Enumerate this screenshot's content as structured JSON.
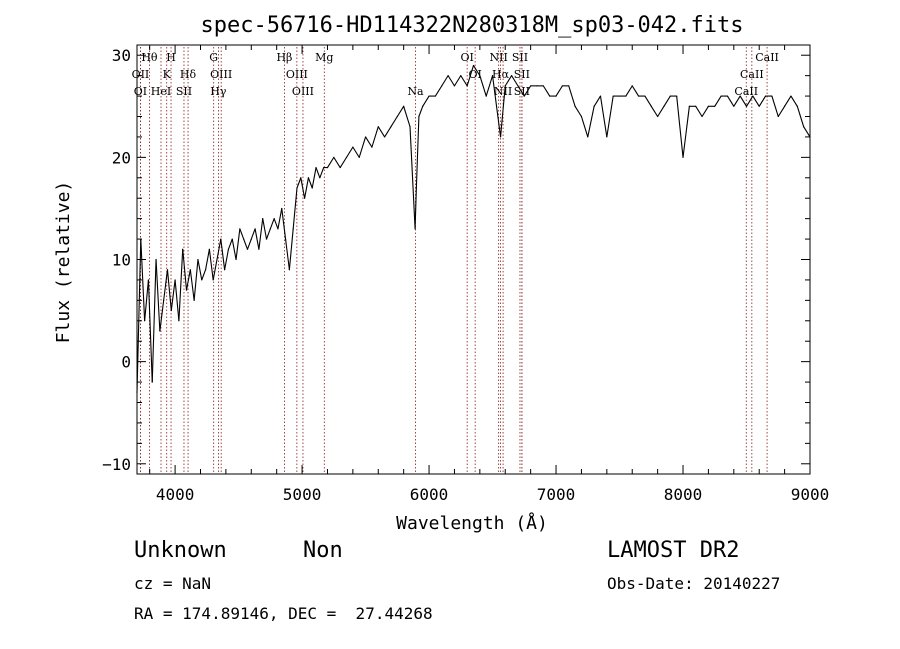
{
  "chart_data": {
    "type": "line",
    "title": "spec-56716-HD114322N280318M_sp03-042.fits",
    "xlabel": "Wavelength (Å)",
    "ylabel": "Flux (relative)",
    "xlim": [
      3700,
      9000
    ],
    "ylim": [
      -11,
      31
    ],
    "x_ticks": [
      4000,
      5000,
      6000,
      7000,
      8000,
      9000
    ],
    "y_ticks": [
      -10,
      0,
      10,
      20,
      30
    ],
    "x_tick_labels": [
      "4000",
      "5000",
      "6000",
      "7000",
      "8000",
      "9000"
    ],
    "y_tick_labels": [
      "−10",
      "0",
      "10",
      "20",
      "30"
    ],
    "grid": false,
    "series": [
      {
        "x": [
          3700,
          3730,
          3760,
          3790,
          3820,
          3850,
          3880,
          3910,
          3940,
          3970,
          4000,
          4030,
          4060,
          4090,
          4120,
          4150,
          4180,
          4210,
          4240,
          4270,
          4300,
          4330,
          4360,
          4390,
          4420,
          4450,
          4480,
          4510,
          4540,
          4570,
          4600,
          4630,
          4660,
          4690,
          4720,
          4750,
          4780,
          4810,
          4840,
          4870,
          4900,
          4930,
          4960,
          4990,
          5020,
          5050,
          5080,
          5110,
          5140,
          5170,
          5200,
          5250,
          5300,
          5350,
          5400,
          5450,
          5500,
          5550,
          5600,
          5650,
          5700,
          5750,
          5800,
          5850,
          5890,
          5900,
          5920,
          5950,
          6000,
          6050,
          6100,
          6150,
          6200,
          6250,
          6300,
          6350,
          6400,
          6450,
          6500,
          6563,
          6600,
          6650,
          6700,
          6750,
          6800,
          6850,
          6900,
          6950,
          7000,
          7050,
          7100,
          7150,
          7200,
          7250,
          7300,
          7350,
          7400,
          7450,
          7500,
          7550,
          7600,
          7650,
          7700,
          7750,
          7800,
          7850,
          7900,
          7950,
          8000,
          8050,
          8100,
          8150,
          8200,
          8250,
          8300,
          8350,
          8400,
          8450,
          8500,
          8550,
          8600,
          8650,
          8700,
          8750,
          8800,
          8850,
          8900,
          8950,
          9000
        ],
        "y": [
          -3,
          12,
          4,
          8,
          -2,
          10,
          3,
          6,
          9,
          5,
          8,
          4,
          11,
          7,
          9,
          6,
          10,
          8,
          9,
          11,
          8,
          10,
          12,
          9,
          11,
          12,
          10,
          13,
          12,
          11,
          12,
          13,
          11,
          14,
          12,
          13,
          14,
          13,
          15,
          12,
          9,
          13,
          17,
          18,
          16,
          18,
          17,
          19,
          18,
          19,
          19,
          20,
          19,
          20,
          21,
          20,
          22,
          21,
          23,
          22,
          23,
          24,
          25,
          23,
          13,
          17,
          24,
          25,
          26,
          26,
          27,
          28,
          27,
          28,
          27,
          29,
          28,
          26,
          28,
          22,
          27,
          28,
          27,
          26,
          27,
          27,
          27,
          26,
          26,
          27,
          27,
          25,
          24,
          22,
          25,
          26,
          22,
          26,
          26,
          26,
          27,
          26,
          26,
          25,
          24,
          25,
          26,
          26,
          20,
          25,
          25,
          24,
          25,
          25,
          26,
          26,
          25,
          26,
          25,
          26,
          25,
          26,
          26,
          24,
          25,
          26,
          25,
          23,
          22
        ],
        "color": "#000000"
      }
    ],
    "line_markers": [
      {
        "name": "Hθ",
        "wavelength": 3798,
        "row": 0
      },
      {
        "name": "OII",
        "wavelength": 3727,
        "row": 1
      },
      {
        "name": "OI",
        "wavelength": 3727,
        "row": 2
      },
      {
        "name": "H",
        "wavelength": 3968,
        "row": 0
      },
      {
        "name": "K",
        "wavelength": 3934,
        "row": 1
      },
      {
        "name": "HeI",
        "wavelength": 3889,
        "row": 2
      },
      {
        "name": "SII",
        "wavelength": 4070,
        "row": 2
      },
      {
        "name": "Hδ",
        "wavelength": 4102,
        "row": 1
      },
      {
        "name": "G",
        "wavelength": 4304,
        "row": 0
      },
      {
        "name": "OIII",
        "wavelength": 4363,
        "row": 1
      },
      {
        "name": "Hγ",
        "wavelength": 4341,
        "row": 2
      },
      {
        "name": "Hβ",
        "wavelength": 4861,
        "row": 0
      },
      {
        "name": "OIII",
        "wavelength": 4959,
        "row": 1
      },
      {
        "name": "OIII",
        "wavelength": 5007,
        "row": 2
      },
      {
        "name": "Mg",
        "wavelength": 5175,
        "row": 0
      },
      {
        "name": "Na",
        "wavelength": 5893,
        "row": 2
      },
      {
        "name": "OI",
        "wavelength": 6300,
        "row": 0
      },
      {
        "name": "OI",
        "wavelength": 6363,
        "row": 1
      },
      {
        "name": "NII",
        "wavelength": 6548,
        "row": 0
      },
      {
        "name": "Hα",
        "wavelength": 6563,
        "row": 1
      },
      {
        "name": "NII",
        "wavelength": 6583,
        "row": 2
      },
      {
        "name": "SII",
        "wavelength": 6716,
        "row": 0
      },
      {
        "name": "SII",
        "wavelength": 6731,
        "row": 1
      },
      {
        "name": "SII",
        "wavelength": 6731,
        "row": 2
      },
      {
        "name": "CaII",
        "wavelength": 8662,
        "row": 0
      },
      {
        "name": "CaII",
        "wavelength": 8542,
        "row": 1
      },
      {
        "name": "CaII",
        "wavelength": 8498,
        "row": 2
      }
    ]
  },
  "info": {
    "class": "Unknown",
    "subclass": "Non",
    "survey": "LAMOST DR2",
    "cz": "cz = NaN",
    "obs_date": "Obs-Date: 20140227",
    "coords": "RA = 174.89146, DEC =  27.44268"
  },
  "colors": {
    "marker_line": "#8b1a1a",
    "spectrum": "#000000",
    "axes": "#000000"
  }
}
